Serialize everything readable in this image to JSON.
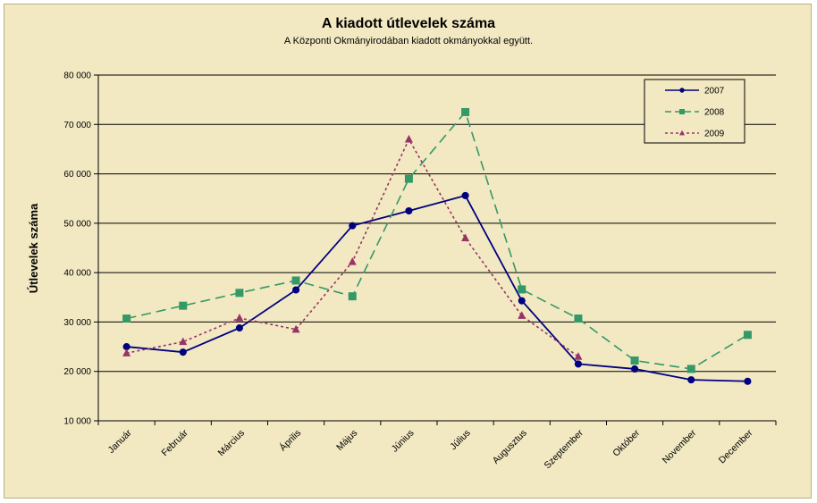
{
  "chart_data": {
    "type": "line",
    "title": "A  kiadott útlevelek száma",
    "subtitle": "A Központi Okmányirodában kiadott okmányokkal együtt.",
    "ylabel": "Útlevelek száma",
    "xlabel": "",
    "ylim": [
      10000,
      80000
    ],
    "yticks": [
      10000,
      20000,
      30000,
      40000,
      50000,
      60000,
      70000,
      80000
    ],
    "ytick_labels": [
      "10 000",
      "20 000",
      "30 000",
      "40 000",
      "50 000",
      "60 000",
      "70 000",
      "80 000"
    ],
    "grid": "horizontal",
    "legend_position": "top-right",
    "categories": [
      "Január",
      "Február",
      "Március",
      "Április",
      "Május",
      "Június",
      "Július",
      "Augusztus",
      "Szeptember",
      "Október",
      "November",
      "December"
    ],
    "series": [
      {
        "name": "2007",
        "color": "#000080",
        "line_style": "solid",
        "marker": "diamond",
        "values": [
          25000,
          23900,
          28800,
          36500,
          49500,
          52500,
          55600,
          34300,
          21500,
          20500,
          18300,
          18000
        ]
      },
      {
        "name": "2008",
        "color": "#339966",
        "line_style": "dashed",
        "marker": "square",
        "values": [
          30700,
          33300,
          35900,
          38400,
          35200,
          59000,
          72500,
          36600,
          30700,
          22200,
          20500,
          27400
        ]
      },
      {
        "name": "2009",
        "color": "#993366",
        "line_style": "dotted",
        "marker": "triangle",
        "values": [
          23700,
          26000,
          30800,
          28500,
          42200,
          67000,
          47000,
          31300,
          23000,
          null,
          null,
          null
        ]
      }
    ]
  }
}
